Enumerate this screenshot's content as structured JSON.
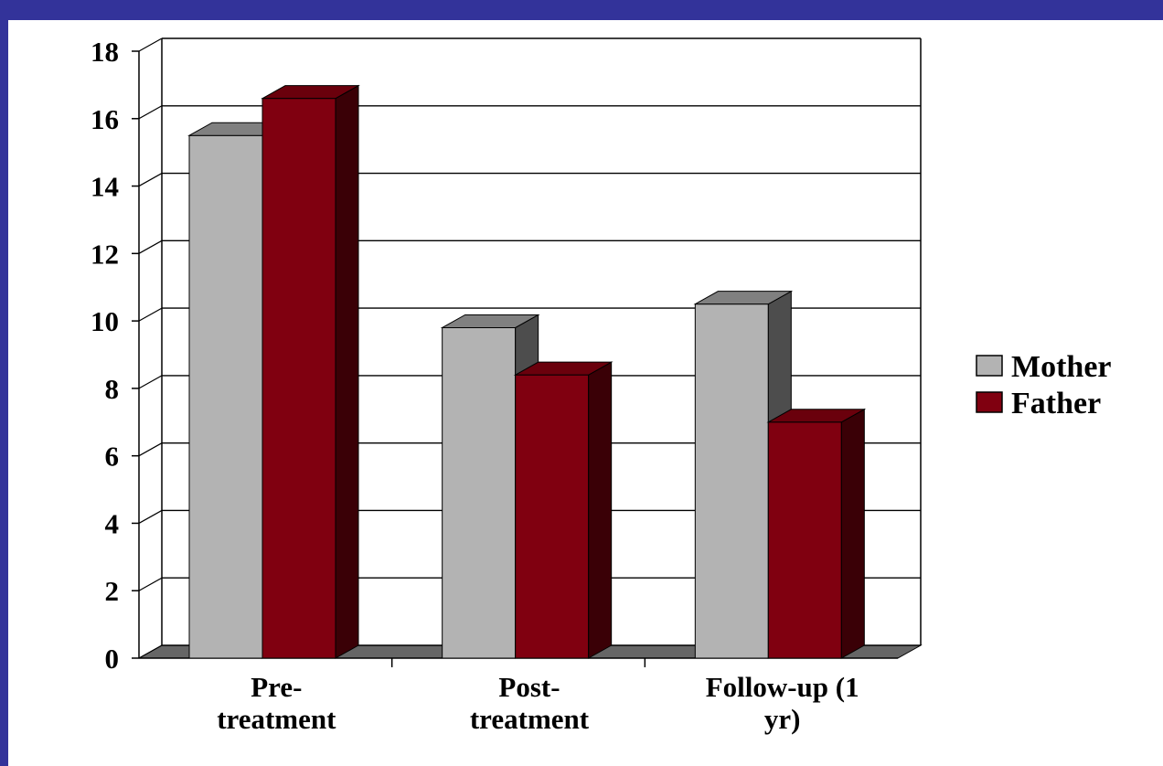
{
  "chart_data": {
    "type": "bar",
    "categories": [
      [
        "Pre-",
        "treatment"
      ],
      [
        "Post-",
        "treatment"
      ],
      [
        "Follow-up (1",
        "yr)"
      ]
    ],
    "series": [
      {
        "name": "Mother",
        "values": [
          15.5,
          9.8,
          10.5
        ],
        "color": "#b3b3b3",
        "side_color": "#4d4d4d",
        "top_color": "#808080"
      },
      {
        "name": "Father",
        "values": [
          16.6,
          8.4,
          7.0
        ],
        "color": "#800010",
        "side_color": "#3a0006",
        "top_color": "#6a000c"
      }
    ],
    "ylim": [
      0,
      18
    ],
    "yticks": [
      "0",
      "2",
      "4",
      "6",
      "8",
      "10",
      "12",
      "14",
      "16",
      "18"
    ],
    "grid": true,
    "legend_position": "right",
    "style": "3d-clustered-column"
  },
  "colors": {
    "frame": "#33339a",
    "floor": "#666666"
  }
}
